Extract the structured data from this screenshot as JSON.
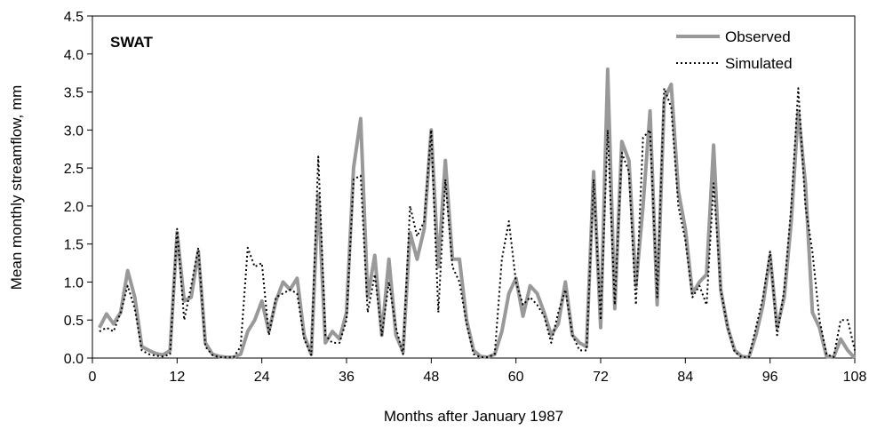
{
  "chart_data": {
    "type": "line",
    "title": "",
    "annotation": "SWAT",
    "xlabel": "Months after January 1987",
    "ylabel": "Mean monthly streamflow, mm",
    "xlim": [
      0,
      108
    ],
    "ylim": [
      0,
      4.5
    ],
    "xticks": [
      0,
      12,
      24,
      36,
      48,
      60,
      72,
      84,
      96,
      108
    ],
    "yticks": [
      0.0,
      0.5,
      1.0,
      1.5,
      2.0,
      2.5,
      3.0,
      3.5,
      4.0,
      4.5
    ],
    "ytick_labels": [
      "0.0",
      "0.5",
      "1.0",
      "1.5",
      "2.0",
      "2.5",
      "3.0",
      "3.5",
      "4.0",
      "4.5"
    ],
    "legend": "top-right",
    "grid": false,
    "series": [
      {
        "name": "Observed",
        "color": "#999999",
        "style": "solid",
        "x": [
          1,
          2,
          3,
          4,
          5,
          6,
          7,
          8,
          9,
          10,
          11,
          12,
          13,
          14,
          15,
          16,
          17,
          18,
          19,
          20,
          21,
          22,
          23,
          24,
          25,
          26,
          27,
          28,
          29,
          30,
          31,
          32,
          33,
          34,
          35,
          36,
          37,
          38,
          39,
          40,
          41,
          42,
          43,
          44,
          45,
          46,
          47,
          48,
          49,
          50,
          51,
          52,
          53,
          54,
          55,
          56,
          57,
          58,
          59,
          60,
          61,
          62,
          63,
          64,
          65,
          66,
          67,
          68,
          69,
          70,
          71,
          72,
          73,
          74,
          75,
          76,
          77,
          78,
          79,
          80,
          81,
          82,
          83,
          84,
          85,
          86,
          87,
          88,
          89,
          90,
          91,
          92,
          93,
          94,
          95,
          96,
          97,
          98,
          99,
          100,
          101,
          102,
          103,
          104,
          105,
          106,
          107,
          108
        ],
        "y": [
          0.4,
          0.58,
          0.45,
          0.6,
          1.15,
          0.8,
          0.15,
          0.1,
          0.06,
          0.04,
          0.1,
          1.65,
          0.75,
          0.8,
          1.4,
          0.2,
          0.05,
          0.02,
          0.01,
          0.01,
          0.05,
          0.35,
          0.5,
          0.75,
          0.35,
          0.75,
          1.0,
          0.9,
          1.05,
          0.3,
          0.05,
          2.15,
          0.2,
          0.35,
          0.25,
          0.6,
          2.5,
          3.15,
          0.8,
          1.35,
          0.3,
          1.3,
          0.3,
          0.08,
          1.65,
          1.3,
          1.7,
          3.0,
          1.2,
          2.6,
          1.3,
          1.3,
          0.5,
          0.1,
          0.02,
          0.01,
          0.05,
          0.35,
          0.85,
          1.05,
          0.55,
          0.95,
          0.85,
          0.6,
          0.3,
          0.45,
          1.0,
          0.3,
          0.2,
          0.15,
          2.45,
          0.4,
          3.8,
          0.65,
          2.85,
          2.6,
          0.95,
          2.0,
          3.25,
          0.7,
          3.4,
          3.6,
          2.2,
          1.7,
          0.85,
          1.0,
          1.1,
          2.8,
          0.9,
          0.4,
          0.1,
          0.02,
          0.01,
          0.3,
          0.7,
          1.35,
          0.4,
          0.8,
          1.8,
          3.25,
          2.3,
          0.6,
          0.4,
          0.02,
          0.01,
          0.25,
          0.1,
          0.0
        ]
      },
      {
        "name": "Simulated",
        "color": "#000000",
        "style": "dotted",
        "x": [
          1,
          2,
          3,
          4,
          5,
          6,
          7,
          8,
          9,
          10,
          11,
          12,
          13,
          14,
          15,
          16,
          17,
          18,
          19,
          20,
          21,
          22,
          23,
          24,
          25,
          26,
          27,
          28,
          29,
          30,
          31,
          32,
          33,
          34,
          35,
          36,
          37,
          38,
          39,
          40,
          41,
          42,
          43,
          44,
          45,
          46,
          47,
          48,
          49,
          50,
          51,
          52,
          53,
          54,
          55,
          56,
          57,
          58,
          59,
          60,
          61,
          62,
          63,
          64,
          65,
          66,
          67,
          68,
          69,
          70,
          71,
          72,
          73,
          74,
          75,
          76,
          77,
          78,
          79,
          80,
          81,
          82,
          83,
          84,
          85,
          86,
          87,
          88,
          89,
          90,
          91,
          92,
          93,
          94,
          95,
          96,
          97,
          98,
          99,
          100,
          101,
          102,
          103,
          104,
          105,
          106,
          107,
          108
        ],
        "y": [
          0.35,
          0.4,
          0.35,
          0.6,
          0.95,
          0.65,
          0.1,
          0.05,
          0.03,
          0.02,
          0.05,
          1.7,
          0.5,
          0.95,
          1.45,
          0.15,
          0.04,
          0.01,
          0.01,
          0.01,
          0.15,
          1.45,
          1.2,
          1.25,
          0.3,
          0.8,
          0.85,
          0.9,
          0.85,
          0.25,
          0.04,
          2.65,
          0.3,
          0.2,
          0.2,
          0.5,
          2.35,
          2.4,
          0.6,
          1.1,
          0.3,
          1.0,
          0.4,
          0.05,
          2.0,
          1.6,
          1.8,
          3.0,
          0.6,
          2.35,
          1.2,
          1.0,
          0.45,
          0.05,
          0.01,
          0.01,
          0.05,
          1.3,
          1.8,
          1.0,
          0.7,
          0.8,
          0.7,
          0.55,
          0.2,
          0.6,
          0.9,
          0.3,
          0.1,
          0.1,
          2.35,
          0.5,
          3.0,
          0.7,
          2.7,
          2.45,
          0.7,
          2.9,
          3.0,
          0.8,
          3.55,
          3.3,
          2.0,
          1.55,
          0.8,
          0.95,
          0.7,
          2.3,
          0.9,
          0.4,
          0.08,
          0.01,
          0.01,
          0.4,
          0.8,
          1.4,
          0.3,
          0.9,
          2.0,
          3.55,
          2.0,
          1.4,
          0.5,
          0.05,
          0.01,
          0.5,
          0.5,
          0.1
        ]
      }
    ]
  }
}
